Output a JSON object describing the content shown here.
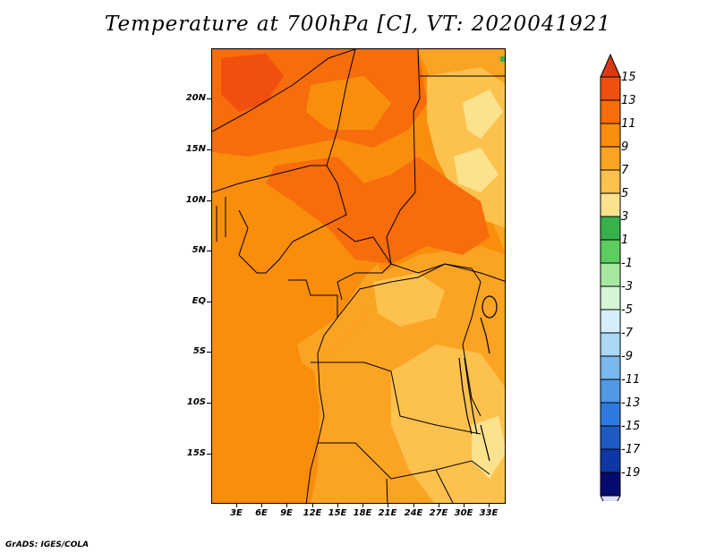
{
  "title": "Temperature at 700hPa [C], VT: 2020041921",
  "map": {
    "lat_labels": [
      "20N",
      "15N",
      "10N",
      "5N",
      "EQ",
      "5S",
      "10S",
      "15S"
    ],
    "lon_labels": [
      "3E",
      "6E",
      "9E",
      "12E",
      "15E",
      "18E",
      "21E",
      "24E",
      "27E",
      "30E",
      "33E"
    ]
  },
  "colorbar": {
    "labels": [
      "15",
      "13",
      "11",
      "9",
      "7",
      "5",
      "3",
      "1",
      "-1",
      "-3",
      "-5",
      "-7",
      "-9",
      "-11",
      "-13",
      "-15",
      "-17",
      "-19"
    ],
    "colors": {
      "over": "#d83a12",
      "c13_15": "#f04f0d",
      "c11_13": "#f76c0b",
      "c9_11": "#f98d0c",
      "c7_9": "#fba323",
      "c5_7": "#fdc14e",
      "c3_5": "#fde28e",
      "c1_3": "#37b24a",
      "cm1_1": "#5ccd5e",
      "cm3_m1": "#a6e8a0",
      "cm5_m3": "#d6f5d6",
      "cm7_m5": "#d6eefb",
      "cm9_m7": "#a9d7f5",
      "cm11_m9": "#78b9ef",
      "cm13_m11": "#4f99e6",
      "cm15_m13": "#2f7adf",
      "cm17_m15": "#1e59c4",
      "cm19_m17": "#0d37a4",
      "under_band": "#050a6e",
      "under": "#dcdcf8"
    }
  },
  "credit": "GrADS: IGES/COLA"
}
